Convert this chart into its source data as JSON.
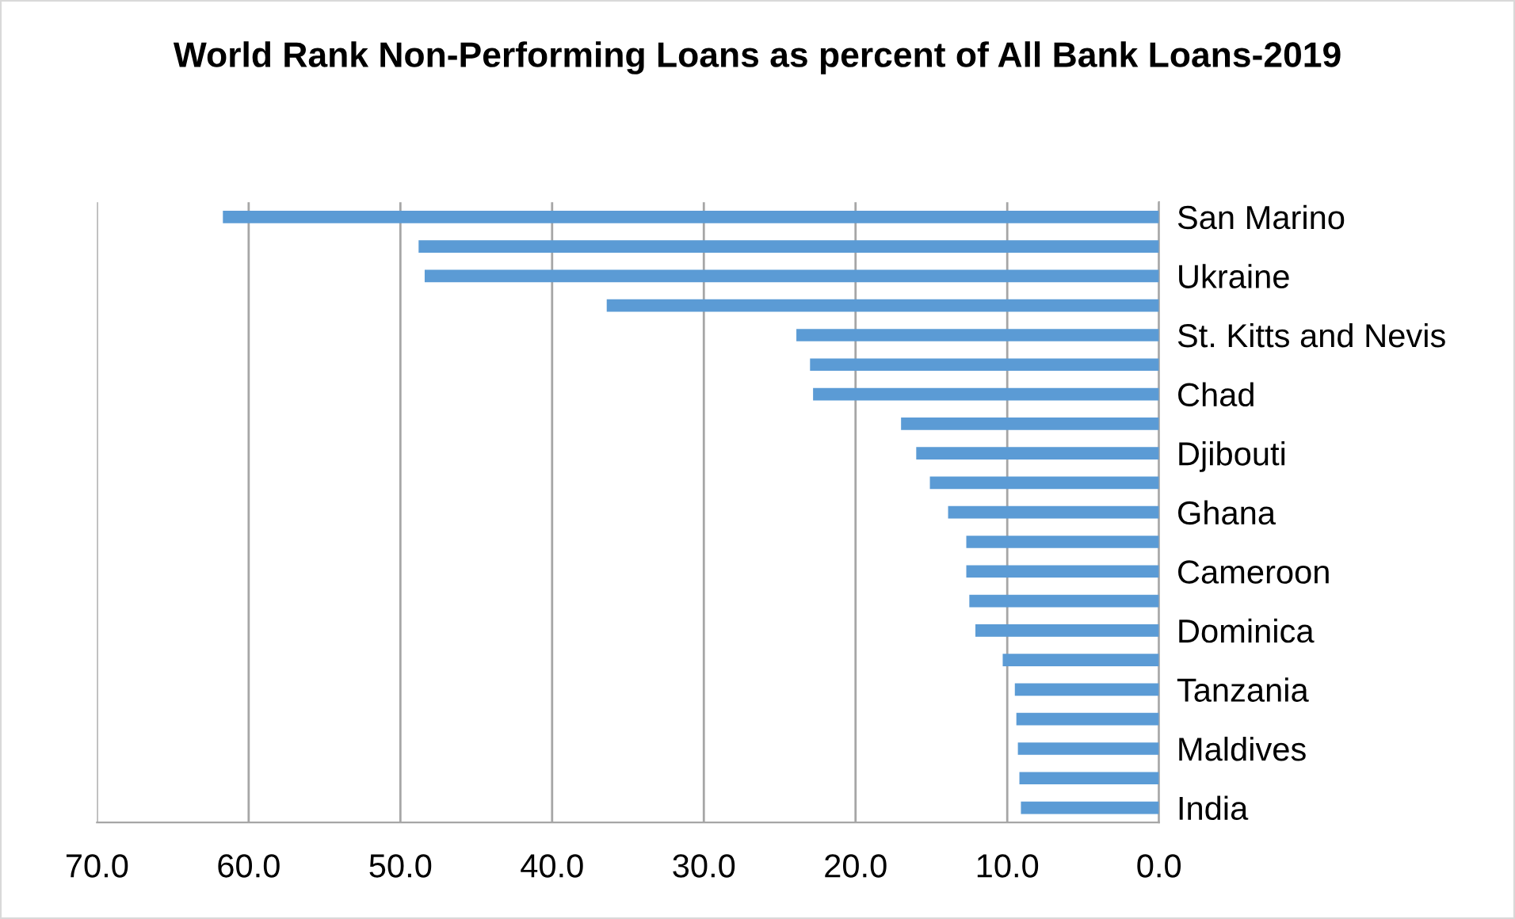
{
  "chart_data": {
    "type": "bar",
    "orientation": "horizontal",
    "title": "World Rank Non-Performing Loans as percent of All Bank Loans-2019",
    "categories": [
      "San Marino",
      null,
      "Ukraine",
      null,
      "St. Kitts and Nevis",
      null,
      "Chad",
      null,
      "Djibouti",
      null,
      "Ghana",
      null,
      "Cameroon",
      null,
      "Dominica",
      null,
      "Tanzania",
      null,
      "Maldives",
      null,
      "India"
    ],
    "values": [
      61.7,
      48.8,
      48.4,
      36.4,
      23.9,
      23.0,
      22.8,
      17.0,
      16.0,
      15.1,
      13.9,
      12.7,
      12.7,
      12.5,
      12.1,
      10.3,
      9.5,
      9.4,
      9.3,
      9.2,
      9.1
    ],
    "color": "#5b9bd5",
    "xlim": [
      70,
      0
    ],
    "xticks": [
      {
        "value": 70,
        "label": "70.0"
      },
      {
        "value": 60,
        "label": "60.0"
      },
      {
        "value": 50,
        "label": "50.0"
      },
      {
        "value": 40,
        "label": "40.0"
      },
      {
        "value": 30,
        "label": "30.0"
      },
      {
        "value": 20,
        "label": "20.0"
      },
      {
        "value": 10,
        "label": "10.0"
      },
      {
        "value": 0,
        "label": "0.0"
      }
    ],
    "grid": "x"
  }
}
